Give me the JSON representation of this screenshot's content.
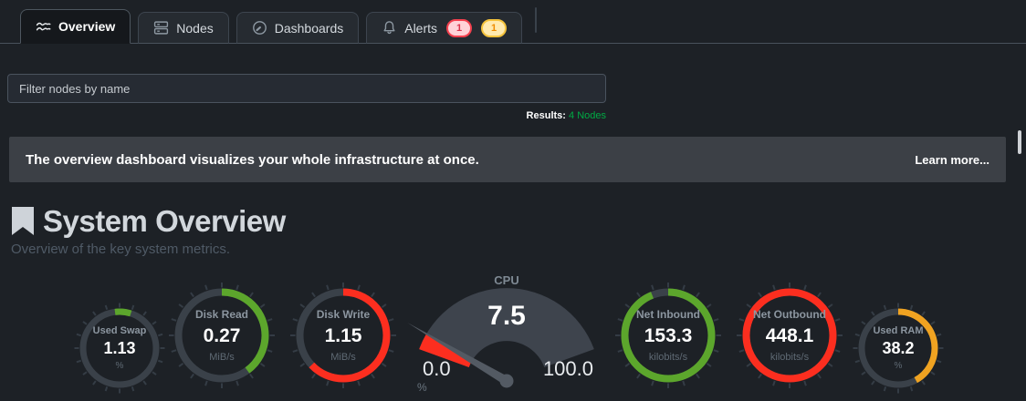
{
  "tabs": [
    {
      "label": "Overview",
      "icon": "area-chart-icon",
      "active": true
    },
    {
      "label": "Nodes",
      "icon": "nodes-icon",
      "active": false
    },
    {
      "label": "Dashboards",
      "icon": "gauge-icon",
      "active": false
    },
    {
      "label": "Alerts",
      "icon": "bell-icon",
      "active": false,
      "badges": [
        {
          "value": "1",
          "type": "critical"
        },
        {
          "value": "1",
          "type": "warning"
        }
      ]
    }
  ],
  "filter": {
    "placeholder": "Filter nodes by name"
  },
  "results": {
    "label": "Results:",
    "value": "4 Nodes"
  },
  "banner": {
    "message": "The overview dashboard visualizes your whole infrastructure at once.",
    "link": "Learn more..."
  },
  "section": {
    "title": "System Overview",
    "subtitle": "Overview of the key system metrics."
  },
  "colors": {
    "green": "#5ca62c",
    "red": "#fc2e1f",
    "orange": "#f0a321",
    "ring_base": "#3a4149",
    "tick": "#343c45",
    "meter_body": "#3e444d",
    "needle": "#535a63",
    "results_green": "#00ab44"
  },
  "chart_data": [
    {
      "type": "ring",
      "id": "used-swap",
      "title": "Used Swap",
      "value": "1.13",
      "units": "%",
      "color": "green",
      "fraction": 0.07,
      "start_offset": -0.02,
      "size": "small"
    },
    {
      "type": "ring",
      "id": "disk-read",
      "title": "Disk Read",
      "value": "0.27",
      "units": "MiB/s",
      "color": "green",
      "fraction": 0.4,
      "size": "large"
    },
    {
      "type": "ring",
      "id": "disk-write",
      "title": "Disk Write",
      "value": "1.15",
      "units": "MiB/s",
      "color": "red",
      "fraction": 0.63,
      "size": "large"
    },
    {
      "type": "meter",
      "id": "cpu",
      "title": "CPU",
      "value": "7.5",
      "units": "%",
      "min": "0.0",
      "max": "100.0",
      "color": "red",
      "fraction": 0.075
    },
    {
      "type": "ring",
      "id": "net-inbound",
      "title": "Net Inbound",
      "value": "153.3",
      "units": "kilobits/s",
      "color": "green",
      "fraction": 0.94,
      "size": "large"
    },
    {
      "type": "ring",
      "id": "net-outbound",
      "title": "Net Outbound",
      "value": "448.1",
      "units": "kilobits/s",
      "color": "red",
      "fraction": 1.0,
      "size": "large"
    },
    {
      "type": "ring",
      "id": "used-ram",
      "title": "Used RAM",
      "value": "38.2",
      "units": "%",
      "color": "orange",
      "fraction": 0.42,
      "size": "small"
    }
  ]
}
